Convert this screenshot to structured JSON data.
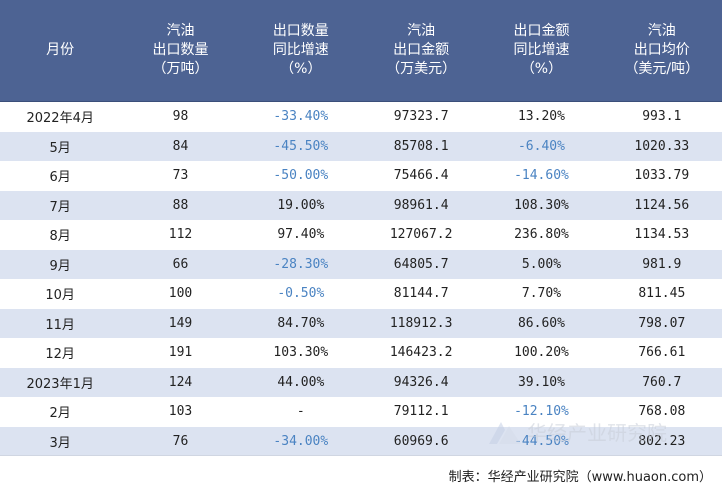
{
  "table": {
    "headers": [
      [
        "月份"
      ],
      [
        "汽油",
        "出口数量",
        "（万吨）"
      ],
      [
        "出口数量",
        "同比增速",
        "（%）"
      ],
      [
        "汽油",
        "出口金额",
        "（万美元）"
      ],
      [
        "出口金额",
        "同比增速",
        "（%）"
      ],
      [
        "汽油",
        "出口均价",
        "（美元/吨）"
      ]
    ],
    "rows": [
      [
        "2022年4月",
        "98",
        "-33.40%",
        "97323.7",
        "13.20%",
        "993.1"
      ],
      [
        "5月",
        "84",
        "-45.50%",
        "85708.1",
        "-6.40%",
        "1020.33"
      ],
      [
        "6月",
        "73",
        "-50.00%",
        "75466.4",
        "-14.60%",
        "1033.79"
      ],
      [
        "7月",
        "88",
        "19.00%",
        "98961.4",
        "108.30%",
        "1124.56"
      ],
      [
        "8月",
        "112",
        "97.40%",
        "127067.2",
        "236.80%",
        "1134.53"
      ],
      [
        "9月",
        "66",
        "-28.30%",
        "64805.7",
        "5.00%",
        "981.9"
      ],
      [
        "10月",
        "100",
        "-0.50%",
        "81144.7",
        "7.70%",
        "811.45"
      ],
      [
        "11月",
        "149",
        "84.70%",
        "118912.3",
        "86.60%",
        "798.07"
      ],
      [
        "12月",
        "191",
        "103.30%",
        "146423.2",
        "100.20%",
        "766.61"
      ],
      [
        "2023年1月",
        "124",
        "44.00%",
        "94326.4",
        "39.10%",
        "760.7"
      ],
      [
        "2月",
        "103",
        "-",
        "79112.1",
        "-12.10%",
        "768.08"
      ],
      [
        "3月",
        "76",
        "-34.00%",
        "60969.6",
        "-44.50%",
        "802.23"
      ]
    ]
  },
  "footer": {
    "source": "制表：华经产业研究院（www.huaon.com）"
  },
  "watermark": {
    "text": "华经产业研究院"
  },
  "colors": {
    "header_bg": "#4d6393",
    "stripe": "#dce3f1",
    "negative": "#4a83c2"
  }
}
